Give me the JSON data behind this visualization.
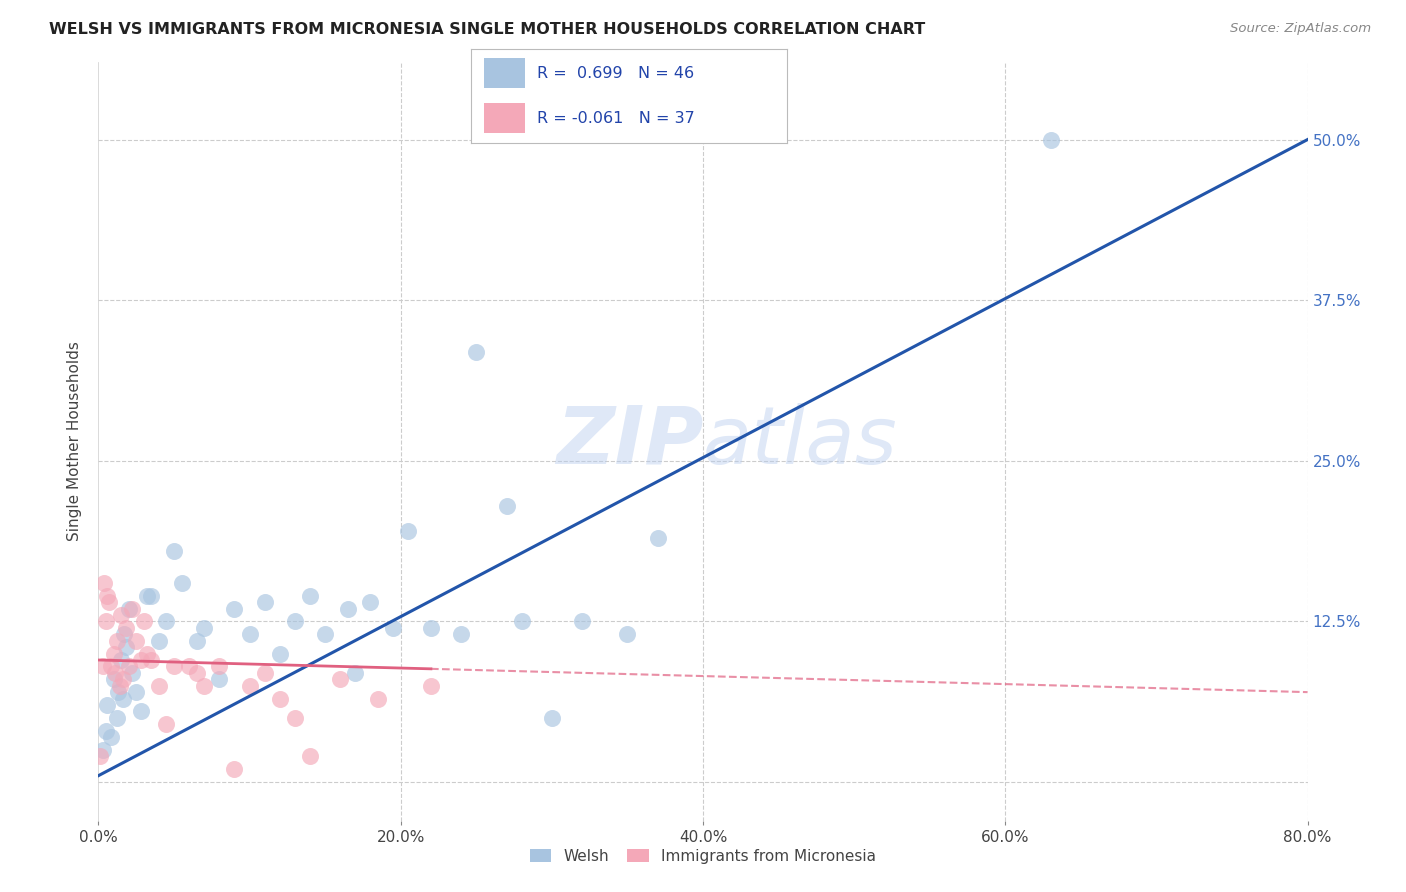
{
  "title": "WELSH VS IMMIGRANTS FROM MICRONESIA SINGLE MOTHER HOUSEHOLDS CORRELATION CHART",
  "source": "Source: ZipAtlas.com",
  "ylabel": "Single Mother Households",
  "ytick_labels": [
    "12.5%",
    "25.0%",
    "37.5%",
    "50.0%"
  ],
  "ytick_values": [
    12.5,
    25.0,
    37.5,
    50.0
  ],
  "xlim": [
    0.0,
    80.0
  ],
  "ylim": [
    -3.0,
    56.0
  ],
  "xtick_values": [
    0,
    20,
    40,
    60,
    80
  ],
  "xtick_labels": [
    "0.0%",
    "20.0%",
    "40.0%",
    "60.0%",
    "80.0%"
  ],
  "legend_label1": "Welsh",
  "legend_label2": "Immigrants from Micronesia",
  "r1": "0.699",
  "n1": "46",
  "r2": "-0.061",
  "n2": "37",
  "welsh_color": "#a8c4e0",
  "micronesia_color": "#f4a8b8",
  "welsh_line_color": "#2255aa",
  "micronesia_line_color": "#e06080",
  "watermark": "ZIPatlas",
  "welsh_x": [
    0.3,
    0.5,
    0.6,
    0.8,
    1.0,
    1.2,
    1.3,
    1.5,
    1.6,
    1.7,
    1.8,
    2.0,
    2.2,
    2.5,
    2.8,
    3.2,
    3.5,
    4.0,
    4.5,
    5.0,
    5.5,
    6.5,
    7.0,
    8.0,
    9.0,
    10.0,
    11.0,
    12.0,
    13.0,
    14.0,
    15.0,
    16.5,
    17.0,
    18.0,
    19.5,
    20.5,
    22.0,
    24.0,
    25.0,
    27.0,
    28.0,
    30.0,
    32.0,
    35.0,
    37.0,
    63.0
  ],
  "welsh_y": [
    2.5,
    4.0,
    6.0,
    3.5,
    8.0,
    5.0,
    7.0,
    9.5,
    6.5,
    11.5,
    10.5,
    13.5,
    8.5,
    7.0,
    5.5,
    14.5,
    14.5,
    11.0,
    12.5,
    18.0,
    15.5,
    11.0,
    12.0,
    8.0,
    13.5,
    11.5,
    14.0,
    10.0,
    12.5,
    14.5,
    11.5,
    13.5,
    8.5,
    14.0,
    12.0,
    19.5,
    12.0,
    11.5,
    33.5,
    21.5,
    12.5,
    5.0,
    12.5,
    11.5,
    19.0,
    50.0
  ],
  "micronesia_x": [
    0.1,
    0.3,
    0.4,
    0.5,
    0.6,
    0.7,
    0.8,
    1.0,
    1.1,
    1.2,
    1.4,
    1.5,
    1.6,
    1.8,
    2.0,
    2.2,
    2.5,
    2.8,
    3.0,
    3.2,
    3.5,
    4.0,
    4.5,
    5.0,
    6.0,
    6.5,
    7.0,
    8.0,
    9.0,
    10.0,
    11.0,
    12.0,
    13.0,
    14.0,
    16.0,
    18.5,
    22.0
  ],
  "micronesia_y": [
    2.0,
    9.0,
    15.5,
    12.5,
    14.5,
    14.0,
    9.0,
    10.0,
    8.5,
    11.0,
    7.5,
    13.0,
    8.0,
    12.0,
    9.0,
    13.5,
    11.0,
    9.5,
    12.5,
    10.0,
    9.5,
    7.5,
    4.5,
    9.0,
    9.0,
    8.5,
    7.5,
    9.0,
    1.0,
    7.5,
    8.5,
    6.5,
    5.0,
    2.0,
    8.0,
    6.5,
    7.5
  ],
  "welsh_line_x": [
    0,
    80
  ],
  "welsh_line_y": [
    0.5,
    50.0
  ],
  "micronesia_line_x": [
    0,
    80
  ],
  "micronesia_line_y": [
    9.5,
    7.0
  ]
}
